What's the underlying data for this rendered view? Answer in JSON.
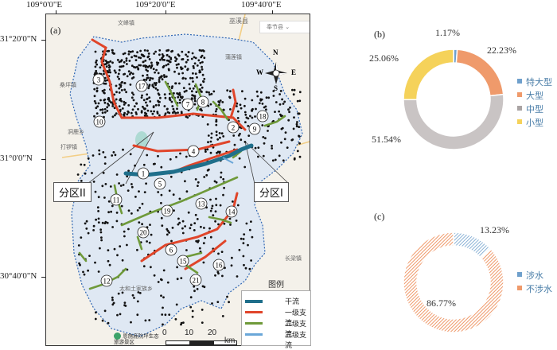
{
  "map": {
    "panel_label": "(a)",
    "top_coords": [
      "109°0'0\"E",
      "109°20'0\"E",
      "109°40'0\"E"
    ],
    "left_coords": [
      "31°20'0\"N",
      "31°0'0\"N",
      "30°40'0\"N"
    ],
    "zone_labels": [
      "分区II",
      "分区I"
    ],
    "north_letters": {
      "n": "N",
      "s": "S",
      "e": "E",
      "w": "W"
    },
    "basemap_labels": [
      "巫溪县",
      "文峰镇",
      "桑坪镇",
      "蒲莲镇",
      "洞鹿乡",
      "打锣镇",
      "太和土家族乡",
      "长梁镇",
      "奉节县",
      "恩施鹿院坪生态旅游景区"
    ],
    "river_numbers": [
      "1",
      "2",
      "3",
      "4",
      "5",
      "6",
      "7",
      "8",
      "9",
      "10",
      "11",
      "12",
      "13",
      "14",
      "15",
      "16",
      "17",
      "18",
      "19",
      "20",
      "21"
    ],
    "legend": {
      "title": "图例",
      "items": [
        {
          "label": "干流",
          "color": "#1f6f8b"
        },
        {
          "label": "一级支流",
          "color": "#e0452a"
        },
        {
          "label": "二级支流",
          "color": "#6f9a3a"
        },
        {
          "label": "三级支流",
          "color": "#6aa7d8"
        }
      ]
    },
    "scale": {
      "ticks": [
        "0",
        "10",
        "20"
      ],
      "unit": "km"
    }
  },
  "chart_data": [
    {
      "type": "pie",
      "panel": "(b)",
      "categories": [
        "特大型",
        "大型",
        "中型",
        "小型"
      ],
      "values": [
        1.17,
        22.23,
        51.54,
        25.06
      ],
      "labels": [
        "1.17%",
        "22.23%",
        "51.54%",
        "25.06%"
      ],
      "colors": [
        "#6fa0cc",
        "#ef9a6b",
        "#c9c4c4",
        "#f5d25a"
      ],
      "legend_position": "right"
    },
    {
      "type": "pie",
      "panel": "(c)",
      "categories": [
        "涉水",
        "不涉水"
      ],
      "values": [
        13.23,
        86.77
      ],
      "labels": [
        "13.23%",
        "86.77%"
      ],
      "colors": [
        "#6fa0cc",
        "#ef9a6b"
      ],
      "legend_position": "right"
    }
  ]
}
